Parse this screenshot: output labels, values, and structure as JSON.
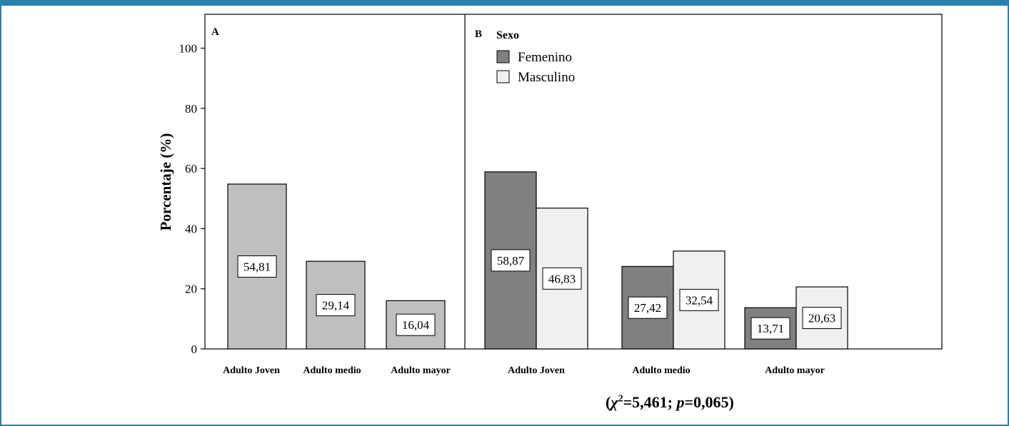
{
  "chart_data": [
    {
      "type": "bar",
      "panel_label": "A",
      "ylabel": "Porcentaje (%)",
      "ylim": [
        0,
        110
      ],
      "yticks": [
        "0",
        "20",
        "40",
        "60",
        "80",
        "100"
      ],
      "categories": [
        "Adulto Joven",
        "Adulto medio",
        "Adulto mayor"
      ],
      "values": [
        54.81,
        29.14,
        16.04
      ],
      "labels": [
        "54,81",
        "29,14",
        "16,04"
      ],
      "bar_color": "#bfbfbf"
    },
    {
      "type": "bar",
      "panel_label": "B",
      "legend_title": "Sexo",
      "legend_position": "top-left",
      "ylim": [
        0,
        110
      ],
      "categories": [
        "Adulto Joven",
        "Adulto medio",
        "Adulto mayor"
      ],
      "series": [
        {
          "name": "Femenino",
          "values": [
            58.87,
            27.42,
            13.71
          ],
          "labels": [
            "58,87",
            "27,42",
            "13,71"
          ],
          "color": "#808080"
        },
        {
          "name": "Masculino",
          "values": [
            46.83,
            32.54,
            20.63
          ],
          "labels": [
            "46,83",
            "32,54",
            "20,63"
          ],
          "color": "#f0f0f0"
        }
      ]
    }
  ],
  "stat_text": {
    "open": "(",
    "chi": "χ",
    "sup": "2",
    "chi_value": "=5,461; ",
    "p": "p",
    "p_value": "=0,065)"
  },
  "colors": {
    "frame": "#2b7fad"
  }
}
